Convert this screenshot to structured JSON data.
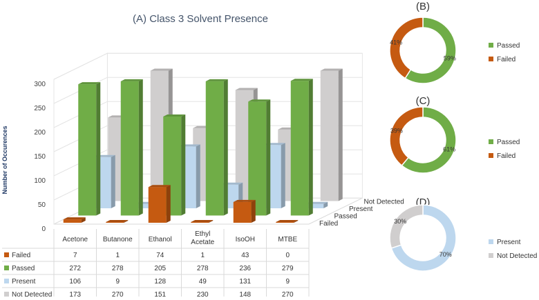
{
  "colors": {
    "failed": "#c55a11",
    "passed": "#70ad47",
    "present": "#bdd7ee",
    "not_detected": "#d0cece"
  },
  "main_chart": {
    "title": "(A) Class 3 Solvent Presence",
    "ylabel": "Number of Occurences",
    "y_ticks": [
      "0",
      "50",
      "100",
      "150",
      "200",
      "250",
      "300"
    ]
  },
  "donuts": [
    {
      "title": "(B)",
      "legend": [
        "Passed",
        "Failed"
      ],
      "labels": [
        "59%",
        "41%"
      ]
    },
    {
      "title": "(C)",
      "legend": [
        "Passed",
        "Failed"
      ],
      "labels": [
        "61%",
        "39%"
      ]
    },
    {
      "title": "(D)",
      "legend": [
        "Present",
        "Not Detected"
      ],
      "labels": [
        "70%",
        "30%"
      ]
    }
  ],
  "chart_data": [
    {
      "type": "bar",
      "title": "(A) Class 3 Solvent Presence",
      "xlabel": "",
      "ylabel": "Number of Occurences",
      "ylim": [
        0,
        300
      ],
      "categories": [
        "Acetone",
        "Butanone",
        "Ethanol",
        "Ethyl Acetate",
        "IsoOH",
        "MTBE"
      ],
      "series": [
        {
          "name": "Failed",
          "values": [
            7,
            1,
            74,
            1,
            43,
            0
          ]
        },
        {
          "name": "Passed",
          "values": [
            272,
            278,
            205,
            278,
            236,
            279
          ]
        },
        {
          "name": "Present",
          "values": [
            106,
            9,
            128,
            49,
            131,
            9
          ]
        },
        {
          "name": "Not Detected",
          "values": [
            173,
            270,
            151,
            230,
            148,
            270
          ]
        }
      ],
      "legend": "data-table"
    },
    {
      "type": "pie",
      "title": "(B)",
      "labels": [
        "Passed",
        "Failed"
      ],
      "values": [
        59,
        41
      ]
    },
    {
      "type": "pie",
      "title": "(C)",
      "labels": [
        "Passed",
        "Failed"
      ],
      "values": [
        61,
        39
      ]
    },
    {
      "type": "pie",
      "title": "(D)",
      "labels": [
        "Present",
        "Not Detected"
      ],
      "values": [
        70,
        30
      ]
    }
  ]
}
